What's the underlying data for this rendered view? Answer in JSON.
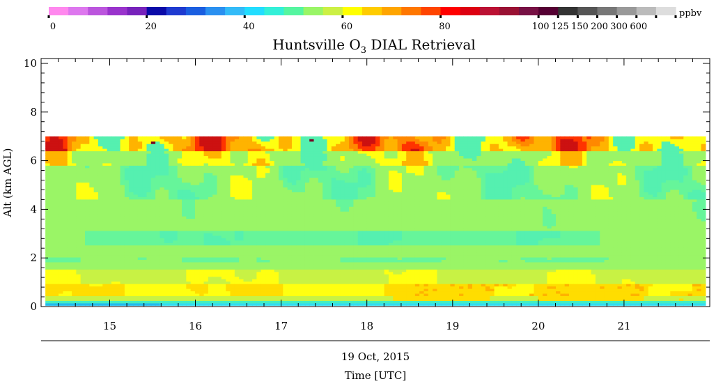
{
  "chart_data": {
    "type": "heatmap",
    "title": "Huntsville O",
    "title_sub": "3",
    "title_rest": " DIAL Retrieval",
    "ylabel": "Alt (km AGL)",
    "xlabel_date": "19 Oct, 2015",
    "xlabel": "Time [UTC]",
    "xlim": [
      14.2,
      22.0
    ],
    "ylim": [
      0,
      10.2
    ],
    "x_ticks": [
      15,
      16,
      17,
      18,
      19,
      20,
      21
    ],
    "y_ticks": [
      0,
      2,
      4,
      6,
      8,
      10
    ],
    "data_extent": {
      "x": [
        14.25,
        21.95
      ],
      "y": [
        0.05,
        7.0
      ]
    },
    "colorbar": {
      "unit": "ppbv",
      "tick_labels": [
        "0",
        "20",
        "40",
        "60",
        "80",
        "100",
        "125",
        "150",
        "200",
        "300",
        "600"
      ],
      "colors": [
        "#ff88ee",
        "#dd77ee",
        "#bb55dd",
        "#9933cc",
        "#7722bb",
        "#0a0aa8",
        "#1e3ad0",
        "#1a5ee0",
        "#2a90f0",
        "#33bbf8",
        "#22ddff",
        "#33f0d8",
        "#55f5a0",
        "#99f566",
        "#ccf044",
        "#ffff00",
        "#ffcc00",
        "#ffa500",
        "#ff7700",
        "#ff4400",
        "#ff0000",
        "#dd0011",
        "#bb1133",
        "#991133",
        "#771144",
        "#550033",
        "#333333",
        "#555555",
        "#777777",
        "#999999",
        "#bbbbbb",
        "#dddddd"
      ]
    },
    "profile": [
      {
        "alt_range": [
          0.0,
          0.15
        ],
        "value_ppbv": "41"
      },
      {
        "alt_range": [
          0.15,
          0.8
        ],
        "value_ppbv": "60-66"
      },
      {
        "alt_range": [
          0.8,
          1.5
        ],
        "value_ppbv": "58-62"
      },
      {
        "alt_range": [
          1.5,
          2.5
        ],
        "value_ppbv": "52-56"
      },
      {
        "alt_range": [
          2.5,
          3.2
        ],
        "value_ppbv": "44-48"
      },
      {
        "alt_range": [
          3.2,
          4.5
        ],
        "value_ppbv": "52-56"
      },
      {
        "alt_range": [
          4.5,
          5.8
        ],
        "value_ppbv": "44-52"
      },
      {
        "alt_range": [
          5.8,
          7.0
        ],
        "value_ppbv": "60-90"
      }
    ]
  }
}
